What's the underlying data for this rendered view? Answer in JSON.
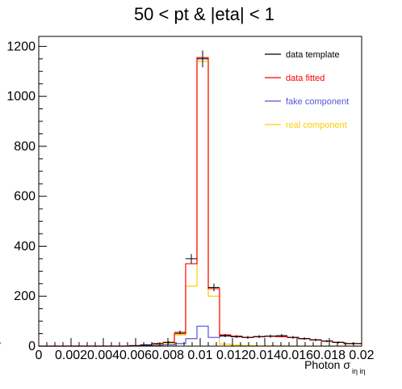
{
  "chart_data": {
    "type": "histogram",
    "title": "50 < pt & |eta| < 1",
    "xlabel": "Photon σ",
    "xlabel_sub": "iη iη",
    "xlim": [
      0,
      0.02
    ],
    "ylim": [
      0,
      1240
    ],
    "x_ticks": [
      0,
      0.002,
      0.004,
      0.006,
      0.008,
      0.01,
      0.012,
      0.014,
      0.016,
      0.018,
      0.02
    ],
    "x_tick_labels": [
      "0",
      "0.002",
      "0.004",
      "0.006",
      "0.008",
      "0.01",
      "0.012",
      "0.014",
      "0.016",
      "0.018",
      "0.02"
    ],
    "y_ticks": [
      0,
      200,
      400,
      600,
      800,
      1000,
      1200
    ],
    "y_tick_labels": [
      "0",
      "200",
      "400",
      "600",
      "800",
      "1000",
      "1200"
    ],
    "bin_edges": [
      0,
      0.0007,
      0.0014,
      0.0021,
      0.0028,
      0.0035,
      0.0042,
      0.0049,
      0.0056,
      0.0063,
      0.007,
      0.0077,
      0.0084,
      0.0091,
      0.0098,
      0.0105,
      0.0112,
      0.0119,
      0.0126,
      0.0133,
      0.014,
      0.0147,
      0.0154,
      0.0161,
      0.0168,
      0.0175,
      0.0182,
      0.0189,
      0.02
    ],
    "legend_position": "top-right",
    "series": [
      {
        "name": "data template",
        "color": "#000000",
        "style": "points",
        "values": [
          0,
          0,
          0,
          0,
          0,
          0,
          0,
          0,
          2,
          5,
          10,
          15,
          55,
          350,
          1150,
          235,
          42,
          38,
          35,
          38,
          40,
          42,
          35,
          30,
          25,
          20,
          15,
          10,
          12
        ]
      },
      {
        "name": "data fitted",
        "color": "#ff0000",
        "style": "step",
        "values": [
          0,
          0,
          0,
          0,
          0,
          0,
          0,
          0,
          2,
          5,
          10,
          15,
          50,
          330,
          1155,
          230,
          45,
          40,
          35,
          38,
          40,
          38,
          35,
          30,
          25,
          20,
          15,
          10,
          12
        ]
      },
      {
        "name": "fake component",
        "color": "#5555dd",
        "style": "step",
        "values": [
          0,
          0,
          0,
          0,
          0,
          0,
          0,
          0,
          1,
          2,
          3,
          5,
          10,
          30,
          80,
          35,
          40,
          38,
          35,
          38,
          40,
          38,
          35,
          30,
          25,
          20,
          15,
          10,
          12
        ]
      },
      {
        "name": "real component",
        "color": "#ffcc00",
        "style": "step",
        "values": [
          0,
          0,
          0,
          0,
          0,
          0,
          0,
          0,
          1,
          3,
          7,
          10,
          45,
          240,
          1140,
          200,
          8,
          4,
          2,
          1,
          1,
          1,
          0,
          0,
          0,
          0,
          0,
          0,
          0
        ]
      }
    ]
  }
}
